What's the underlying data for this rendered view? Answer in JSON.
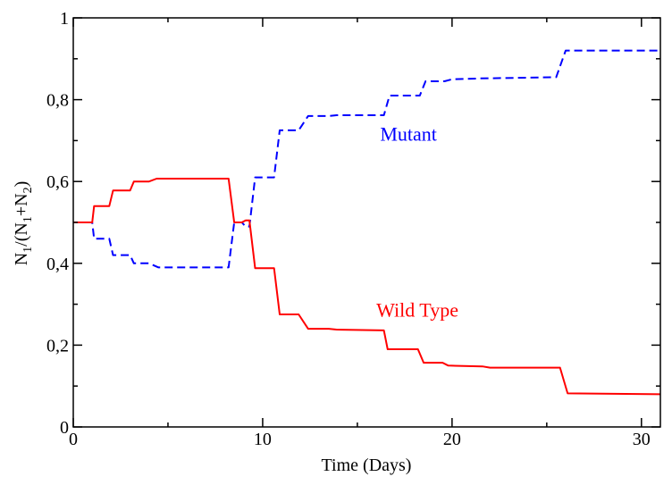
{
  "chart_data": {
    "type": "line",
    "xlabel": "Time (Days)",
    "ylabel": {
      "p1": "N",
      "s1": "1",
      "p2": "/(N",
      "s2": "1",
      "p3": "+N",
      "s3": "2",
      "p4": ")"
    },
    "xlim": [
      0,
      31
    ],
    "ylim": [
      0,
      1
    ],
    "x_ticks": [
      {
        "value": 0,
        "label": "0"
      },
      {
        "value": 10,
        "label": "10"
      },
      {
        "value": 20,
        "label": "20"
      },
      {
        "value": 30,
        "label": "30"
      }
    ],
    "x_minor_ticks": [
      5,
      15,
      25
    ],
    "y_ticks": [
      {
        "value": 0,
        "label": "0"
      },
      {
        "value": 0.2,
        "label": "0,2"
      },
      {
        "value": 0.4,
        "label": "0,4"
      },
      {
        "value": 0.6,
        "label": "0,6"
      },
      {
        "value": 0.8,
        "label": "0,8"
      },
      {
        "value": 1,
        "label": "1"
      }
    ],
    "y_minor_ticks": [
      0.1,
      0.3,
      0.5,
      0.7,
      0.9
    ],
    "grid": false,
    "series": [
      {
        "name": "Mutant",
        "color": "#0000ff",
        "dash": true,
        "points": [
          [
            0,
            0.5
          ],
          [
            1.0,
            0.5
          ],
          [
            1.1,
            0.46
          ],
          [
            1.9,
            0.46
          ],
          [
            2.1,
            0.42
          ],
          [
            3.0,
            0.42
          ],
          [
            3.2,
            0.4
          ],
          [
            4.0,
            0.4
          ],
          [
            4.5,
            0.39
          ],
          [
            8.2,
            0.39
          ],
          [
            8.5,
            0.5
          ],
          [
            8.9,
            0.5
          ],
          [
            9.1,
            0.49
          ],
          [
            9.3,
            0.49
          ],
          [
            9.6,
            0.61
          ],
          [
            10.6,
            0.61
          ],
          [
            10.9,
            0.725
          ],
          [
            11.9,
            0.725
          ],
          [
            12.4,
            0.76
          ],
          [
            13.5,
            0.76
          ],
          [
            13.9,
            0.762
          ],
          [
            16.4,
            0.762
          ],
          [
            16.7,
            0.81
          ],
          [
            18.3,
            0.81
          ],
          [
            18.6,
            0.845
          ],
          [
            19.6,
            0.845
          ],
          [
            20.0,
            0.85
          ],
          [
            21.5,
            0.852
          ],
          [
            25.5,
            0.855
          ],
          [
            26.0,
            0.92
          ],
          [
            31.0,
            0.92
          ]
        ]
      },
      {
        "name": "Wild Type",
        "color": "#ff0000",
        "dash": false,
        "points": [
          [
            0,
            0.5
          ],
          [
            1.0,
            0.5
          ],
          [
            1.1,
            0.54
          ],
          [
            1.9,
            0.54
          ],
          [
            2.1,
            0.578
          ],
          [
            3.0,
            0.578
          ],
          [
            3.2,
            0.6
          ],
          [
            4.0,
            0.6
          ],
          [
            4.4,
            0.607
          ],
          [
            8.2,
            0.607
          ],
          [
            8.5,
            0.5
          ],
          [
            8.9,
            0.5
          ],
          [
            9.1,
            0.505
          ],
          [
            9.3,
            0.505
          ],
          [
            9.6,
            0.388
          ],
          [
            10.6,
            0.388
          ],
          [
            10.9,
            0.275
          ],
          [
            11.9,
            0.275
          ],
          [
            12.4,
            0.24
          ],
          [
            13.5,
            0.24
          ],
          [
            13.9,
            0.238
          ],
          [
            16.4,
            0.236
          ],
          [
            16.6,
            0.19
          ],
          [
            18.2,
            0.19
          ],
          [
            18.5,
            0.157
          ],
          [
            19.5,
            0.157
          ],
          [
            19.8,
            0.15
          ],
          [
            21.6,
            0.148
          ],
          [
            22.0,
            0.145
          ],
          [
            25.7,
            0.145
          ],
          [
            26.1,
            0.082
          ],
          [
            31.0,
            0.08
          ]
        ]
      }
    ],
    "annotations": [
      {
        "text": "Mutant",
        "color": "#0000ff",
        "x": 16.2,
        "y": 0.7
      },
      {
        "text": "Wild Type",
        "color": "#ff0000",
        "x": 16.0,
        "y": 0.27
      }
    ]
  }
}
